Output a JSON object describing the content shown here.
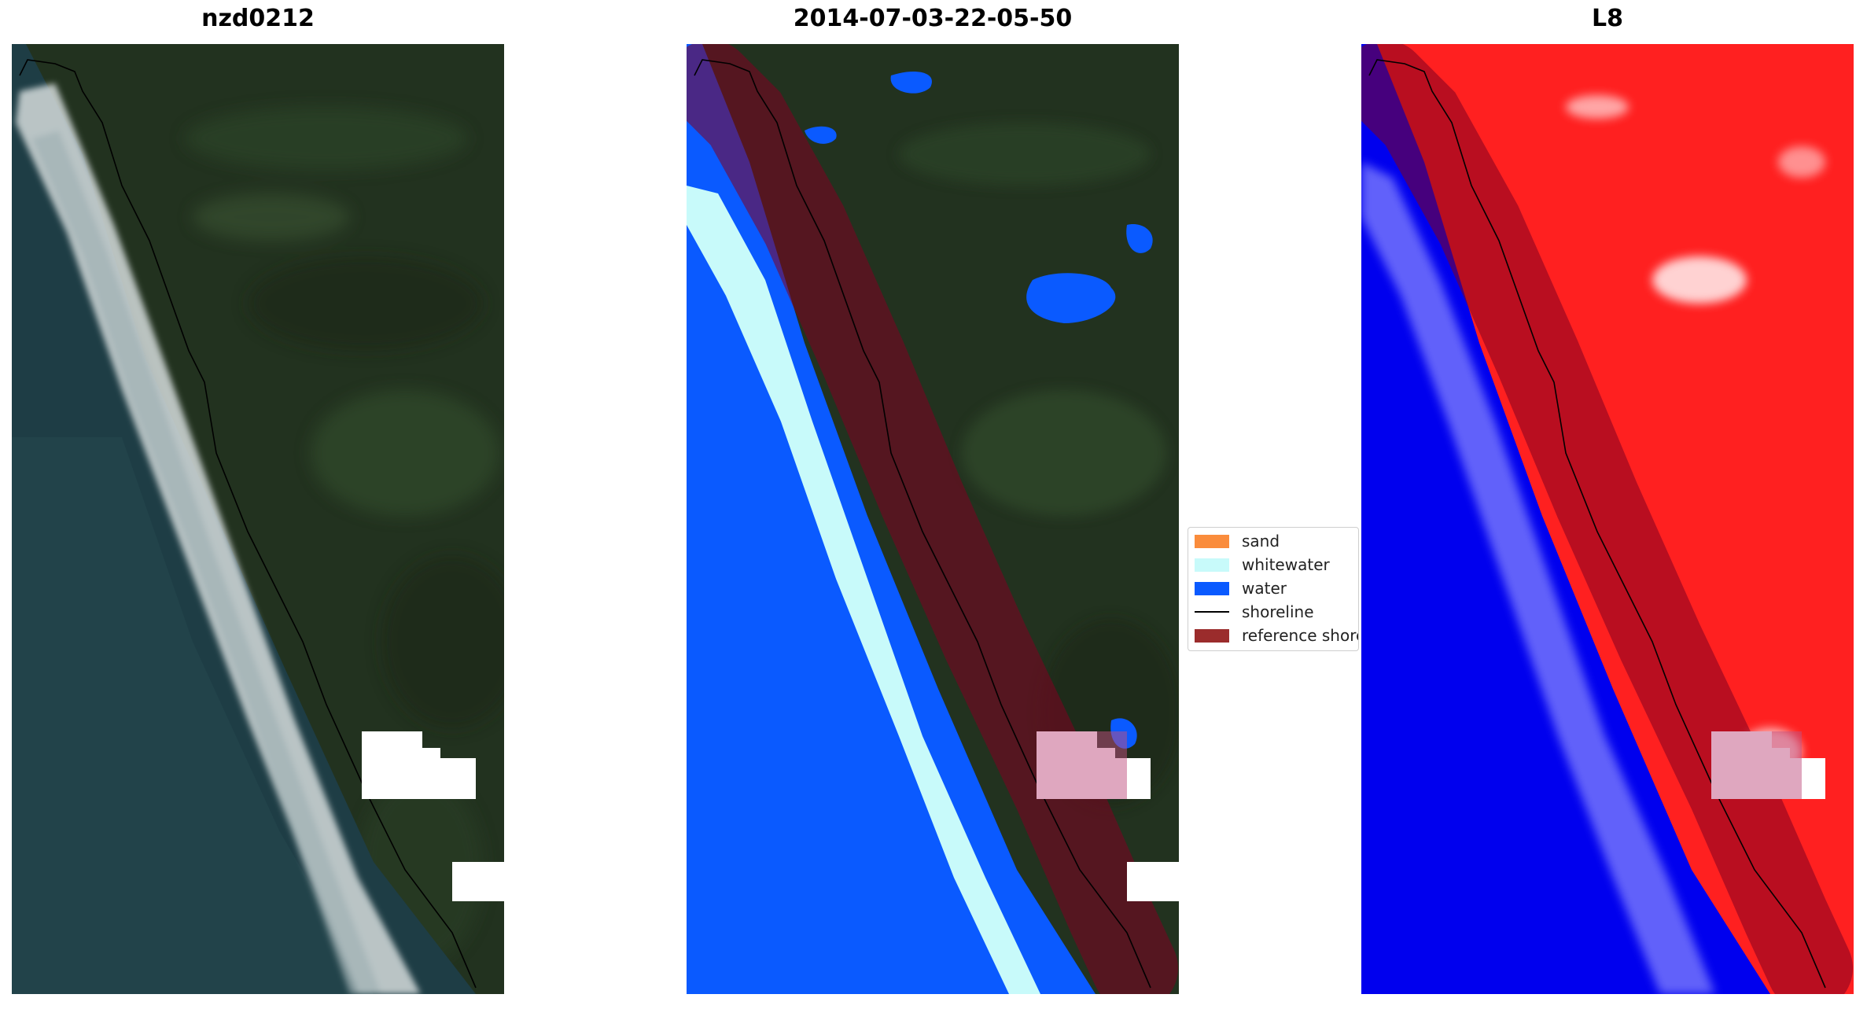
{
  "panels": [
    {
      "title": "nzd0212",
      "type": "rgb-composite"
    },
    {
      "title": "2014-07-03-22-05-50",
      "type": "classified"
    },
    {
      "title": "L8",
      "type": "index-map"
    }
  ],
  "legend": {
    "items": [
      {
        "label": "sand",
        "color": "#fa8c3c",
        "kind": "patch"
      },
      {
        "label": "whitewater",
        "color": "#c8fafa",
        "kind": "patch"
      },
      {
        "label": "water",
        "color": "#0a5aff",
        "kind": "patch"
      },
      {
        "label": "shoreline",
        "color": "#000000",
        "kind": "line"
      },
      {
        "label": "reference shoreline buffer",
        "color": "#8b2323",
        "kind": "patch"
      }
    ]
  },
  "colors": {
    "land": "#22321f",
    "ocean": "#1e3d45",
    "surf": "#dfe6e6",
    "index_land": "#ff2020",
    "index_water": "#0000ee",
    "buffer": "#800020",
    "cloud_mask": "#ffffff"
  }
}
